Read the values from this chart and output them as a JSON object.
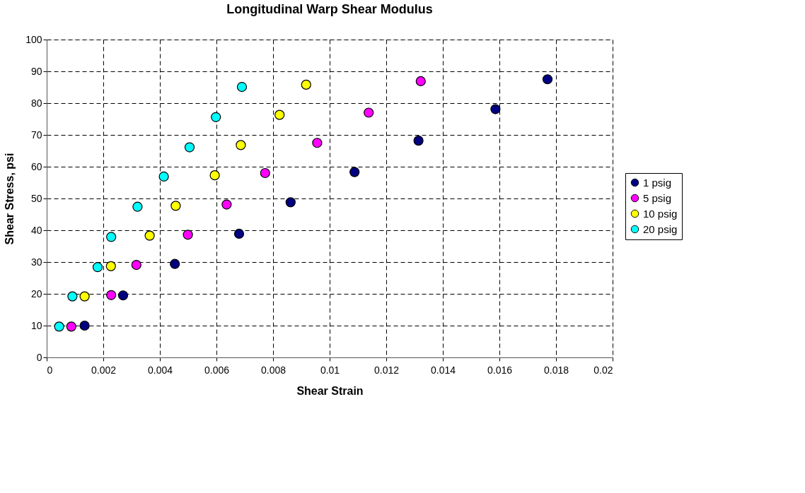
{
  "chart_data": {
    "type": "scatter",
    "title": "Longitudinal Warp Shear Modulus",
    "xlabel": "Shear Strain",
    "ylabel": "Shear Stress, psi",
    "series": [
      {
        "name": "1 psig",
        "color": "#000080",
        "x": [
          0.00134,
          0.0027,
          0.00453,
          0.0068,
          0.00862,
          0.01088,
          0.01314,
          0.01586,
          0.0177
        ],
        "values": [
          10.0,
          19.5,
          29.4,
          38.9,
          48.8,
          58.3,
          68.2,
          78.1,
          87.5
        ]
      },
      {
        "name": "5 psig",
        "color": "#ff00ff",
        "x": [
          0.00087,
          0.00228,
          0.00317,
          0.00499,
          0.00636,
          0.00772,
          0.00956,
          0.01138,
          0.01322
        ],
        "values": [
          9.7,
          19.6,
          29.1,
          38.6,
          48.1,
          58.0,
          67.5,
          77.0,
          86.9
        ]
      },
      {
        "name": "10 psig",
        "color": "#ffff00",
        "x": [
          0.00134,
          0.00227,
          0.00364,
          0.00456,
          0.00594,
          0.00686,
          0.00823,
          0.00917
        ],
        "values": [
          19.2,
          28.7,
          38.3,
          47.7,
          57.3,
          66.8,
          76.3,
          85.8
        ]
      },
      {
        "name": "20 psig",
        "color": "#00ffff",
        "x": [
          0.00044,
          0.00091,
          0.0018,
          0.00228,
          0.00321,
          0.00414,
          0.00505,
          0.00598,
          0.0069
        ],
        "values": [
          9.7,
          19.2,
          28.4,
          37.9,
          47.4,
          56.9,
          66.1,
          75.6,
          85.1
        ]
      }
    ],
    "xlim": [
      0,
      0.02
    ],
    "xticks": [
      0,
      0.002,
      0.004,
      0.006,
      0.008,
      0.01,
      0.012,
      0.014,
      0.016,
      0.018,
      0.02
    ],
    "ylim": [
      0,
      100
    ],
    "yticks": [
      0,
      10,
      20,
      30,
      40,
      50,
      60,
      70,
      80,
      90,
      100
    ],
    "grid": true,
    "legend": "right",
    "marker": "circle"
  }
}
